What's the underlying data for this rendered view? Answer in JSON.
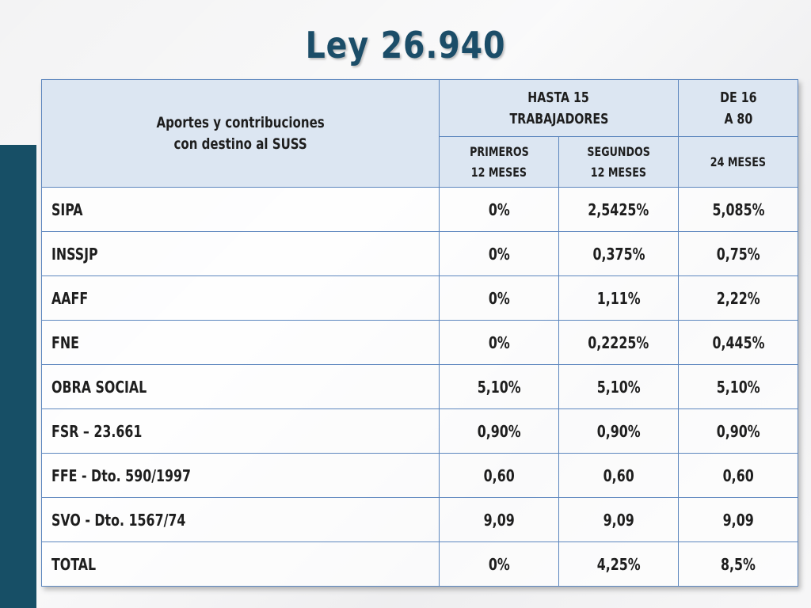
{
  "slide": {
    "title": "Ley 26.940"
  },
  "table": {
    "header": {
      "col0_line1": "Aportes y contribuciones",
      "col0_line2": "con destino al SUSS",
      "group1_line1": "HASTA 15",
      "group1_line2": "TRABAJADORES",
      "group2_line1": "DE 16",
      "group2_line2": "A 80",
      "sub1_line1": "PRIMEROS",
      "sub1_line2": "12 MESES",
      "sub2_line1": "SEGUNDOS",
      "sub2_line2": "12 MESES",
      "sub3": "24 MESES"
    },
    "rows": [
      {
        "label": "SIPA",
        "c1": "0%",
        "c2": "2,5425%",
        "c3": "5,085%"
      },
      {
        "label": "INSSJP",
        "c1": "0%",
        "c2": "0,375%",
        "c3": "0,75%"
      },
      {
        "label": "AAFF",
        "c1": "0%",
        "c2": "1,11%",
        "c3": "2,22%"
      },
      {
        "label": "FNE",
        "c1": "0%",
        "c2": "0,2225%",
        "c3": "0,445%"
      },
      {
        "label": "OBRA SOCIAL",
        "c1": "5,10%",
        "c2": "5,10%",
        "c3": "5,10%"
      },
      {
        "label": "FSR – 23.661",
        "c1": "0,90%",
        "c2": "0,90%",
        "c3": "0,90%"
      },
      {
        "label": "FFE - Dto. 590/1997",
        "c1": "0,60",
        "c2": "0,60",
        "c3": "0,60"
      },
      {
        "label": "SVO - Dto. 1567/74",
        "c1": "9,09",
        "c2": "9,09",
        "c3": "9,09"
      },
      {
        "label": "TOTAL",
        "c1": "0%",
        "c2": "4,25%",
        "c3": "8,5%"
      }
    ]
  },
  "colors": {
    "title": "#1b4d68",
    "side_bar": "#174f66",
    "header_bg": "#dce6f2",
    "border": "#5c86be"
  }
}
